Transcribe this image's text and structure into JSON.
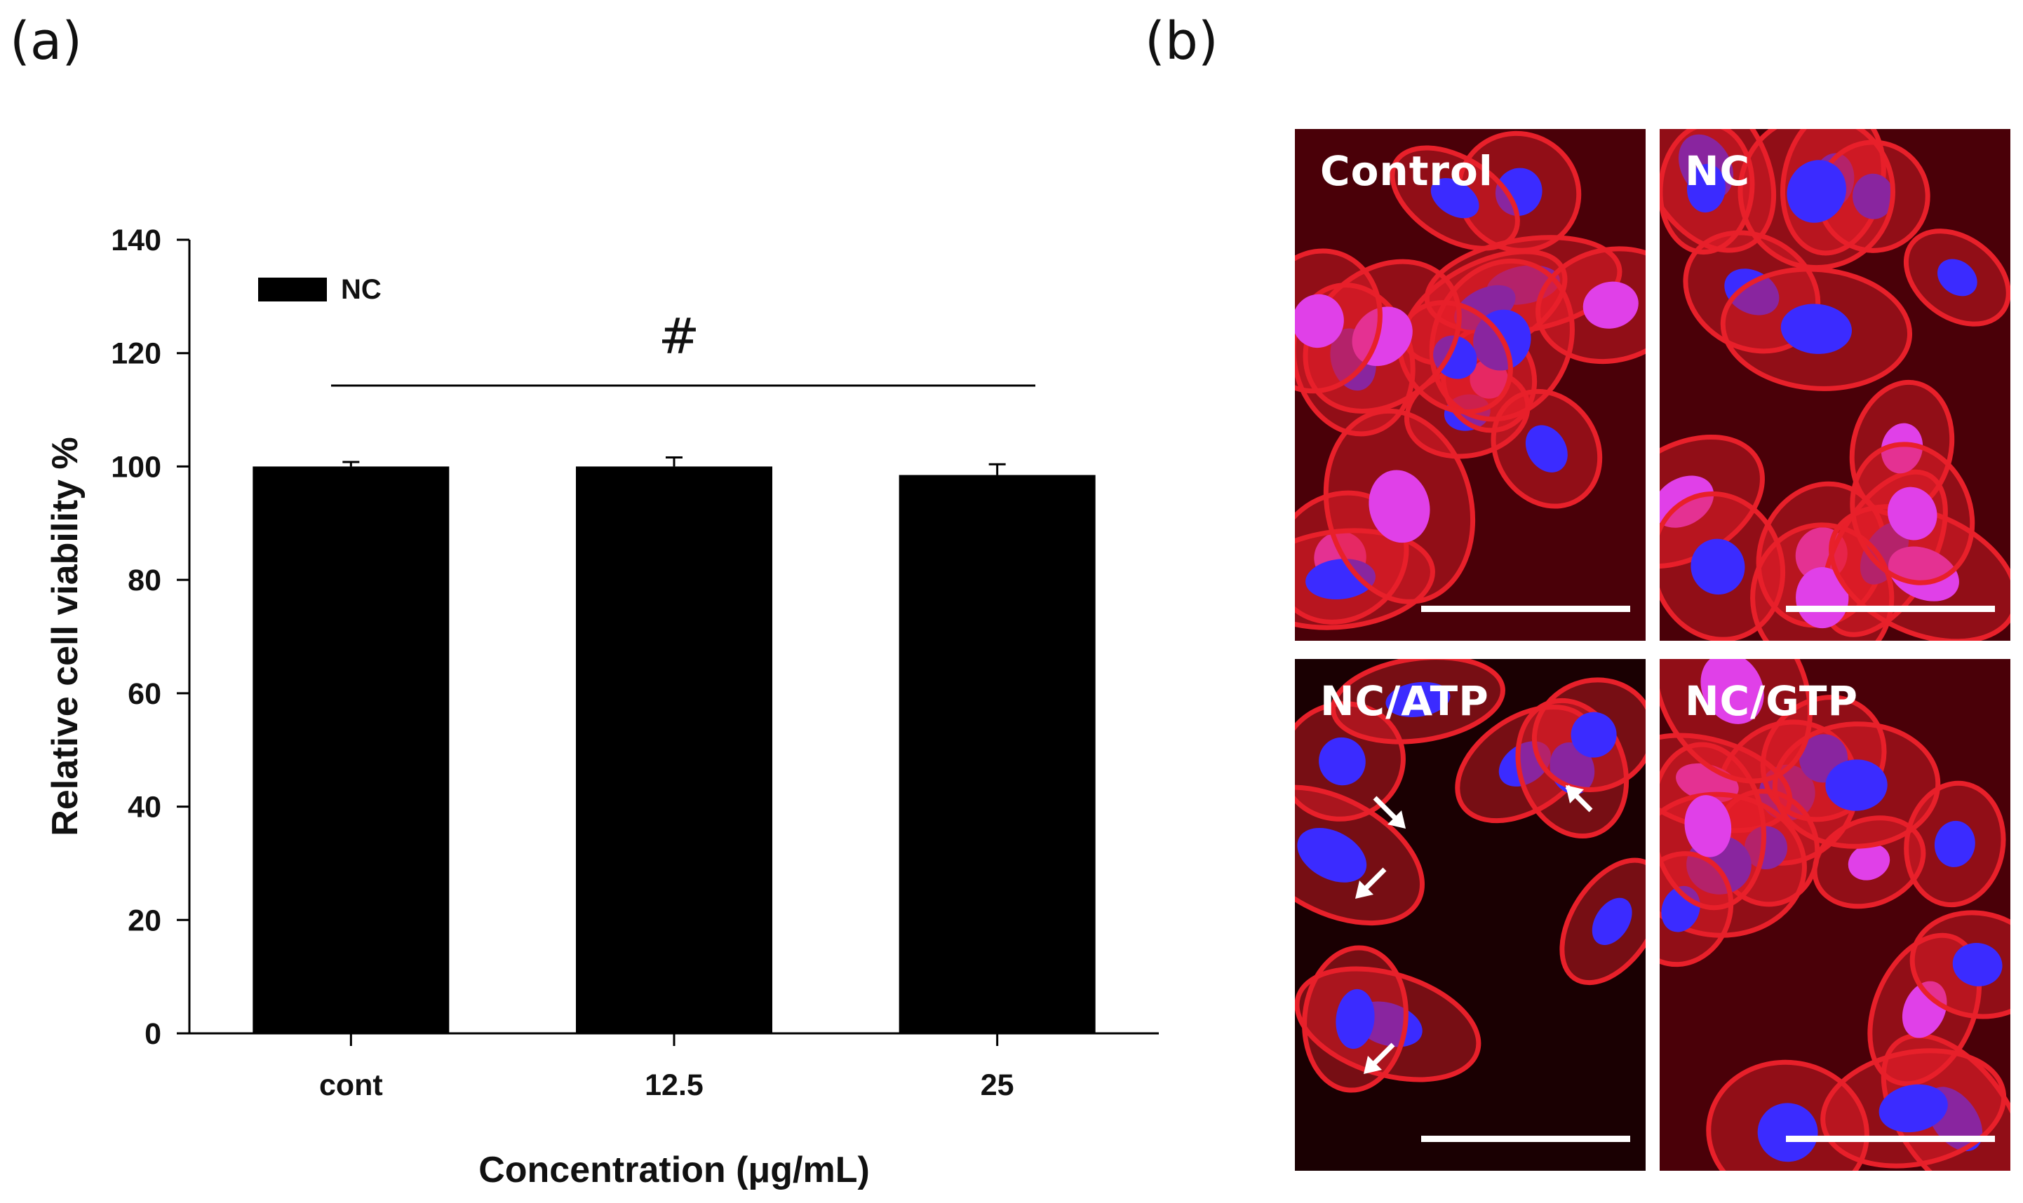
{
  "panel_labels": {
    "a": "(a)",
    "b": "(b)"
  },
  "chart_data": {
    "type": "bar",
    "categories": [
      "cont",
      "12.5",
      "25"
    ],
    "series": [
      {
        "name": "NC",
        "values": [
          100,
          100,
          98.5
        ],
        "errors": [
          0.8,
          1.6,
          1.9
        ]
      }
    ],
    "xlabel": "Concentration (μg/mL)",
    "ylabel": "Relative cell viability %",
    "ylim": [
      0,
      140
    ],
    "yticks": [
      0,
      20,
      40,
      60,
      80,
      100,
      120,
      140
    ],
    "legend": {
      "placement": "top-left",
      "label": "NC"
    },
    "significance": "#",
    "colors": {
      "bar": "#000000",
      "axis": "#000000"
    }
  },
  "micrographs": [
    {
      "label": "Control",
      "colors": {
        "membrane": "#e8202a",
        "nucleus": "#3b2bff",
        "overlap": "#e040e8"
      }
    },
    {
      "label": "NC",
      "colors": {
        "membrane": "#e8202a",
        "nucleus": "#3b2bff",
        "overlap": "#e040e8"
      }
    },
    {
      "label": "NC/ATP",
      "colors": {
        "membrane": "#e8202a",
        "nucleus": "#3b2bff",
        "overlap": "#e040e8"
      }
    },
    {
      "label": "NC/GTP",
      "colors": {
        "membrane": "#e8202a",
        "nucleus": "#3b2bff",
        "overlap": "#e040e8"
      }
    }
  ]
}
